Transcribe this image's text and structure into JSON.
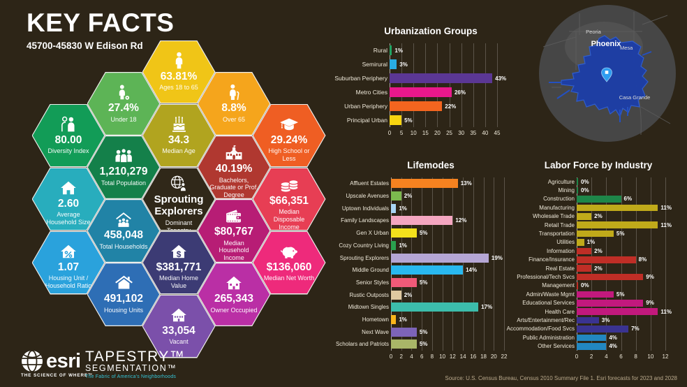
{
  "page": {
    "title": "KEY FACTS",
    "subtitle": "45700-45830 W Edison Rd",
    "background": "#2d2517"
  },
  "hexagons": [
    {
      "id": "diversity-index",
      "value": "80.00",
      "label": "Diversity Index",
      "icon": "people-pair-icon",
      "color": "#129c57",
      "col": 0,
      "row": 0
    },
    {
      "id": "average-household-size",
      "value": "2.60",
      "label": "Average Household Size",
      "icon": "house-icon",
      "color": "#28adbd",
      "col": 0,
      "row": 1
    },
    {
      "id": "housing-unit-household-ratio",
      "value": "1.07",
      "label": "Housing Unit / Household Ratio",
      "icon": "house-percent-icon",
      "color": "#2aa2dc",
      "col": 0,
      "row": 2
    },
    {
      "id": "under-18",
      "value": "27.4%",
      "label": "Under 18",
      "icon": "child-soccer-icon",
      "color": "#5db456",
      "col": 1,
      "row": 0
    },
    {
      "id": "total-population",
      "value": "1,210,279",
      "label": "Total Population",
      "icon": "people-group-icon",
      "color": "#14804a",
      "col": 1,
      "row": 1
    },
    {
      "id": "total-households",
      "value": "458,048",
      "label": "Total Households",
      "icon": "house-family-icon",
      "color": "#2183a6",
      "col": 1,
      "row": 2
    },
    {
      "id": "housing-units",
      "value": "491,102",
      "label": "Housing Units",
      "icon": "house-chimney-icon",
      "color": "#2e6eb5",
      "col": 1,
      "row": 3
    },
    {
      "id": "ages-18-to-65",
      "value": "63.81%",
      "label": "Ages 18 to 65",
      "icon": "person-icon",
      "color": "#f0c517",
      "col": 2,
      "row": 0
    },
    {
      "id": "median-age",
      "value": "34.3",
      "label": "Median Age",
      "icon": "cake-icon",
      "color": "#b1a41f",
      "col": 2,
      "row": 1
    },
    {
      "id": "dominant-tapestry",
      "value": "Sprouting Explorers",
      "label": "Dominant Tapestry",
      "icon": "globe-person-icon",
      "color": "#302819",
      "col": 2,
      "row": 2,
      "variant": "dominant"
    },
    {
      "id": "median-home-value",
      "value": "$381,771",
      "label": "Median Home Value",
      "icon": "house-dollar-icon",
      "color": "#3c3b74",
      "col": 2,
      "row": 3
    },
    {
      "id": "vacant",
      "value": "33,054",
      "label": "Vacant",
      "icon": "house-windows-icon",
      "color": "#7b50aa",
      "col": 2,
      "row": 4
    },
    {
      "id": "over-65",
      "value": "8.8%",
      "label": "Over 65",
      "icon": "person-cane-icon",
      "color": "#f5a51c",
      "col": 3,
      "row": 0
    },
    {
      "id": "bachelors-grad-prof-degree",
      "value": "40.19%",
      "label": "Bachelors, Graduate or Prof. Degree",
      "icon": "school-icon",
      "color": "#b03830",
      "col": 3,
      "row": 1
    },
    {
      "id": "median-household-income",
      "value": "$80,767",
      "label": "Median Household Income",
      "icon": "wallet-icon",
      "color": "#b71d75",
      "col": 3,
      "row": 2
    },
    {
      "id": "owner-occupied",
      "value": "265,343",
      "label": "Owner Occupied",
      "icon": "house-door-icon",
      "color": "#ba2fa5",
      "col": 3,
      "row": 3
    },
    {
      "id": "high-school-or-less",
      "value": "29.24%",
      "label": "High School or Less",
      "icon": "grad-cap-icon",
      "color": "#ef5e23",
      "col": 4,
      "row": 0
    },
    {
      "id": "median-disposable-income",
      "value": "$66,351",
      "label": "Median Disposable Income",
      "icon": "coins-icon",
      "color": "#e73e54",
      "col": 4,
      "row": 1
    },
    {
      "id": "median-net-worth",
      "value": "$136,060",
      "label": "Median Net Worth",
      "icon": "piggy-bank-icon",
      "color": "#ee2a7b",
      "col": 4,
      "row": 2
    }
  ],
  "chart_data": [
    {
      "id": "urbanization-groups",
      "type": "bar",
      "orientation": "horizontal",
      "title": "Urbanization Groups",
      "categories": [
        "Rural",
        "Semirural",
        "Suburban Periphery",
        "Metro Cities",
        "Urban Periphery",
        "Principal Urban"
      ],
      "values": [
        1,
        3,
        43,
        26,
        22,
        5
      ],
      "labels": [
        "1%",
        "3%",
        "43%",
        "26%",
        "22%",
        "5%"
      ],
      "colors": [
        "#1fa463",
        "#29abe2",
        "#5b3794",
        "#e9188c",
        "#f3651f",
        "#f7d410"
      ],
      "xlim": [
        0,
        45
      ],
      "xtick_step": 5,
      "grid": true,
      "legend": "none"
    },
    {
      "id": "lifemodes",
      "type": "bar",
      "orientation": "horizontal",
      "title": "Lifemodes",
      "categories": [
        "Affluent Estates",
        "Upscale Avenues",
        "Uptown Individuals",
        "Family Landscapes",
        "Gen X Urban",
        "Cozy Country Living",
        "Sprouting Explorers",
        "Middle Ground",
        "Senior Styles",
        "Rustic Outposts",
        "Midtown Singles",
        "Hometown",
        "Next Wave",
        "Scholars and Patriots"
      ],
      "values": [
        13,
        2,
        1,
        12,
        5,
        1,
        19,
        14,
        5,
        2,
        17,
        1,
        5,
        5
      ],
      "labels": [
        "13%",
        "2%",
        "1%",
        "12%",
        "5%",
        "1%",
        "19%",
        "14%",
        "5%",
        "2%",
        "17%",
        "1%",
        "5%",
        "5%"
      ],
      "colors": [
        "#f58220",
        "#7cb94e",
        "#a9d6f5",
        "#f4a6c0",
        "#f3e11c",
        "#2aa04f",
        "#b5a6d4",
        "#29b8ef",
        "#f05a78",
        "#e0c9a0",
        "#3cbcab",
        "#f9b51c",
        "#7d64b8",
        "#a9b668"
      ],
      "xlim": [
        0,
        22
      ],
      "xtick_step": 2,
      "grid": true,
      "legend": "none"
    },
    {
      "id": "labor-force-by-industry",
      "type": "bar",
      "orientation": "horizontal",
      "title": "Labor Force by Industry",
      "categories": [
        "Agriculture",
        "Mining",
        "Construction",
        "Manufacturing",
        "Wholesale Trade",
        "Retail Trade",
        "Transportation",
        "Utilities",
        "Information",
        "Finance/Insurance",
        "Real Estate",
        "Professional/Tech Svcs",
        "Management",
        "Admin/Waste Mgmt",
        "Educational Services",
        "Health Care",
        "Arts/Entertainment/Rec",
        "Accommodation/Food Svcs",
        "Public Administration",
        "Other Services"
      ],
      "values": [
        0,
        0,
        6,
        11,
        2,
        11,
        5,
        1,
        2,
        8,
        2,
        9,
        0,
        5,
        9,
        11,
        3,
        7,
        4,
        4
      ],
      "labels": [
        "0%",
        "0%",
        "6%",
        "11%",
        "2%",
        "11%",
        "5%",
        "1%",
        "2%",
        "8%",
        "2%",
        "9%",
        "0%",
        "5%",
        "9%",
        "11%",
        "3%",
        "7%",
        "4%",
        "4%"
      ],
      "colors": [
        "#1e8649",
        "#1e8649",
        "#1e8649",
        "#c0aa1a",
        "#c0aa1a",
        "#c0aa1a",
        "#c0aa1a",
        "#c0aa1a",
        "#bf2e26",
        "#bf2e26",
        "#bf2e26",
        "#bf2e26",
        "#bf2e26",
        "#c2197d",
        "#c2197d",
        "#c2197d",
        "#3a3391",
        "#3a3391",
        "#2287c0",
        "#2287c0"
      ],
      "xlim": [
        0,
        12
      ],
      "xtick_step": 2,
      "grid": true,
      "legend": "none"
    }
  ],
  "map": {
    "city_labels": [
      "Peoria",
      "Phoenix",
      "Mesa",
      "Casa Grande"
    ],
    "area_color": "#1c3ea8",
    "pin_color": "#2e9df0"
  },
  "footer": {
    "esri_logo": "esri",
    "esri_tagline": "THE SCIENCE OF WHERE™",
    "tapestry_title": "TAPESTRY™",
    "tapestry_subtitle": "SEGMENTATION™",
    "tapestry_tagline": "The Fabric of America's Neighborhoods",
    "tapestry_tagline_color": "#35c4d7",
    "source": "Source: U.S. Census Bureau, Census 2010 Summary File 1. Esri forecasts for 2023 and 2028"
  }
}
